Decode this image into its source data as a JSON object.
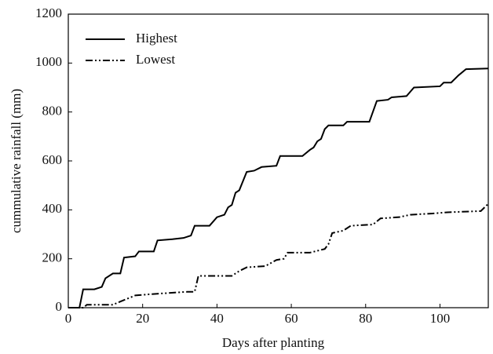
{
  "chart_data": {
    "type": "line",
    "xlabel": "Days after planting",
    "ylabel": "cummulative rainfall (mm)",
    "xlim": [
      0,
      113
    ],
    "xticks": [
      0,
      20,
      40,
      60,
      80,
      100
    ],
    "ylim": [
      0,
      1200
    ],
    "yticks": [
      0,
      200,
      400,
      600,
      800,
      1000,
      1200
    ],
    "legend": "upper left",
    "series": [
      {
        "name": "Highest",
        "color": "#000000",
        "linestyle": "solid",
        "x": [
          0,
          3,
          4,
          7,
          9,
          10,
          12,
          14,
          15,
          18,
          19,
          23,
          24,
          28,
          31,
          33,
          34,
          38,
          40,
          42,
          43,
          44,
          45,
          46,
          48,
          50,
          52,
          56,
          57,
          63,
          65,
          66,
          67,
          68,
          69,
          70,
          74,
          75,
          81,
          83,
          86,
          87,
          91,
          93,
          100,
          101,
          103,
          105,
          107,
          113
        ],
        "values": [
          0,
          0,
          75,
          75,
          85,
          120,
          140,
          140,
          205,
          210,
          230,
          230,
          275,
          280,
          285,
          295,
          335,
          335,
          370,
          380,
          410,
          420,
          470,
          480,
          555,
          560,
          575,
          580,
          620,
          620,
          645,
          655,
          680,
          690,
          730,
          745,
          745,
          760,
          760,
          845,
          850,
          860,
          865,
          900,
          905,
          920,
          920,
          950,
          975,
          978
        ]
      },
      {
        "name": "Lowest",
        "color": "#000000",
        "linestyle": "dashdotdot",
        "x": [
          0,
          4,
          5,
          12,
          14,
          18,
          22,
          32,
          34,
          35,
          44,
          46,
          48,
          53,
          56,
          58,
          59,
          65,
          69,
          70,
          71,
          74,
          76,
          82,
          84,
          89,
          92,
          98,
          102,
          111,
          113
        ],
        "values": [
          0,
          0,
          12,
          12,
          25,
          50,
          55,
          65,
          65,
          130,
          130,
          150,
          165,
          170,
          195,
          200,
          225,
          225,
          240,
          260,
          305,
          315,
          335,
          340,
          365,
          370,
          380,
          385,
          390,
          395,
          425
        ]
      }
    ]
  }
}
